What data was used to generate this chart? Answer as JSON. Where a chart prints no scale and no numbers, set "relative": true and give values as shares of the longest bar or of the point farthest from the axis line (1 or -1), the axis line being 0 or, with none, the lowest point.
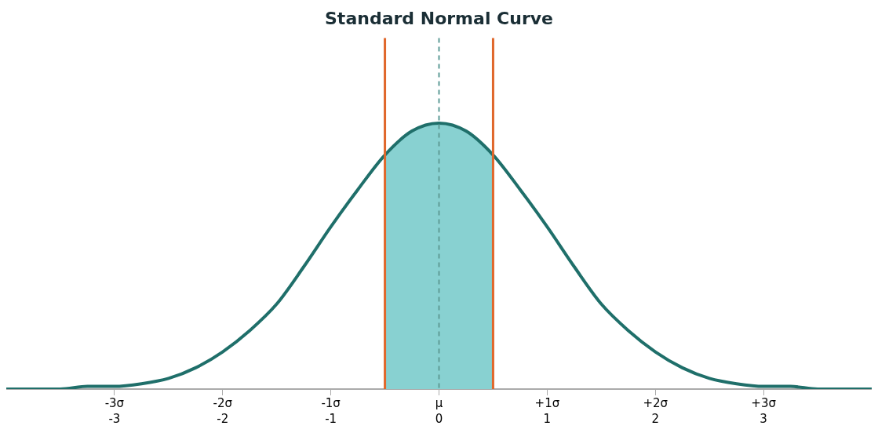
{
  "chart_data": {
    "type": "line",
    "title": "Standard Normal Curve",
    "relative": true,
    "legend": false,
    "grid": false,
    "marker": "none",
    "xlim": [
      -4,
      4
    ],
    "xticks": [
      -3,
      -2,
      -1,
      0,
      1,
      2,
      3
    ],
    "x2lim": [
      -4,
      4
    ],
    "x2ticks": [
      {
        "value": -3,
        "label": "-3σ"
      },
      {
        "value": -2,
        "label": "-2σ"
      },
      {
        "value": -1,
        "label": "-1σ"
      },
      {
        "value": 0,
        "label": "μ"
      },
      {
        "value": 1,
        "label": "+1σ"
      },
      {
        "value": 2,
        "label": "+2σ"
      },
      {
        "value": 3,
        "label": "+3σ"
      }
    ],
    "series": [
      {
        "type": "area",
        "color": "#88d1d1",
        "x": [
          -0.5,
          -0.25,
          0,
          0.25,
          0.5
        ],
        "values": [
          0.88,
          0.97,
          1,
          0.97,
          0.88
        ]
      },
      {
        "color": "#1f6f6a",
        "x": [
          -4,
          -3.75,
          -3.5,
          -3.25,
          -3,
          -2.75,
          -2.5,
          -2.25,
          -2,
          -1.75,
          -1.5,
          -1.25,
          -1,
          -0.75,
          -0.5,
          -0.25,
          0,
          0.25,
          0.5,
          0.75,
          1,
          1.25,
          1.5,
          1.75,
          2,
          2.25,
          2.5,
          2.75,
          3,
          3.25,
          3.5,
          3.75,
          4
        ],
        "values": [
          0,
          0,
          0,
          0.01,
          0.01,
          0.02,
          0.04,
          0.08,
          0.14,
          0.22,
          0.32,
          0.46,
          0.61,
          0.75,
          0.88,
          0.97,
          1,
          0.97,
          0.88,
          0.75,
          0.61,
          0.46,
          0.32,
          0.22,
          0.14,
          0.08,
          0.04,
          0.02,
          0.01,
          0.01,
          0,
          0,
          0
        ]
      }
    ],
    "ref_lines": [
      {
        "axis": "x",
        "value": -0.5,
        "color": "#e0672b",
        "line_style": "solid"
      },
      {
        "axis": "x",
        "value": 0.5,
        "color": "#e0672b",
        "line_style": "solid"
      },
      {
        "axis": "x",
        "value": 0,
        "color": "#5f9c97",
        "line_style": "dashed"
      }
    ]
  }
}
